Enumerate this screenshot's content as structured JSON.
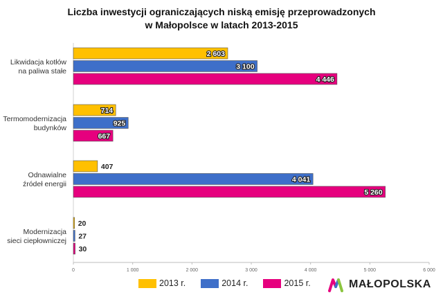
{
  "title_line1": "Liczba inwestycji ograniczających niską emisję przeprowadzonych",
  "title_line2": "w Małopolsce w latach 2013-2015",
  "brand": {
    "name": "MAŁOPOLSKA"
  },
  "chart_data": {
    "type": "bar",
    "orientation": "horizontal",
    "title": "Liczba inwestycji ograniczających niską emisję przeprowadzonych w Małopolsce w latach 2013-2015",
    "categories": [
      [
        "Likwidacja kotłów",
        "na paliwa stałe"
      ],
      [
        "Termomodernizacja",
        "budynków"
      ],
      [
        "Odnawialne",
        "źródeł energii"
      ],
      [
        "Modernizacja",
        "sieci ciepłowniczej"
      ]
    ],
    "series": [
      {
        "name": "2013 r.",
        "color": "#FFC000",
        "values": [
          2603,
          714,
          407,
          20
        ],
        "labels": [
          "2 603",
          "714",
          "407",
          "20"
        ]
      },
      {
        "name": "2014 r.",
        "color": "#3E6FC9",
        "values": [
          3100,
          925,
          4041,
          27
        ],
        "labels": [
          "3 100",
          "925",
          "4 041",
          "27"
        ]
      },
      {
        "name": "2015 r.",
        "color": "#E6007E",
        "values": [
          4446,
          667,
          5260,
          30
        ],
        "labels": [
          "4 446",
          "667",
          "5 260",
          "30"
        ]
      }
    ],
    "xlim": [
      0,
      6000
    ],
    "xticks": [
      0,
      1000,
      2000,
      3000,
      4000,
      5000,
      6000
    ],
    "xtick_labels": [
      "0",
      "1 000",
      "2 000",
      "3 000",
      "4 000",
      "5 000",
      "6 000"
    ],
    "grid": false,
    "legend_position": "bottom"
  }
}
